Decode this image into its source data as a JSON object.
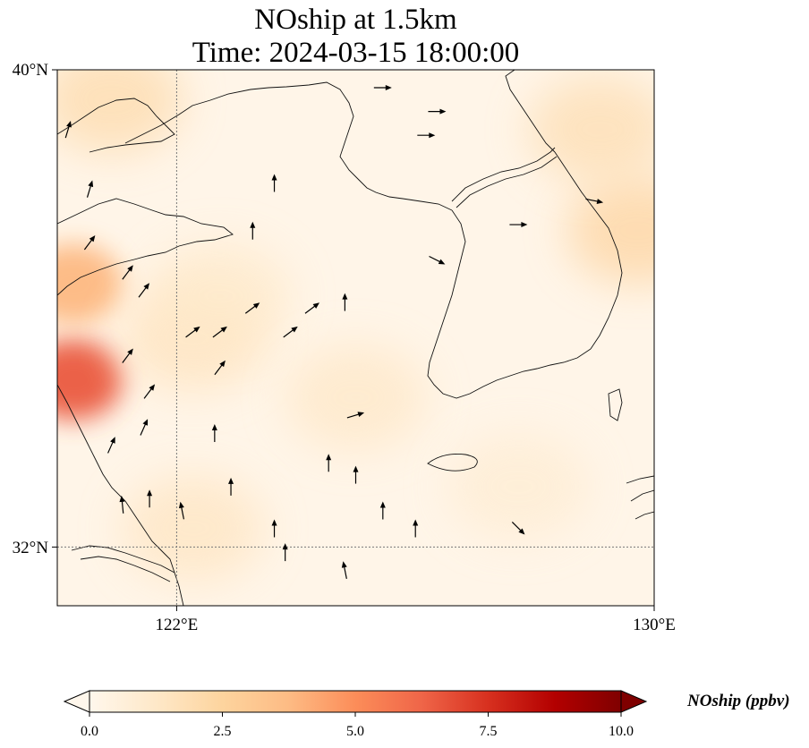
{
  "title": {
    "line1": "NOship at 1.5km",
    "line2": "Time: 2024-03-15 18:00:00"
  },
  "map": {
    "extent_lon": [
      119.0,
      130.0
    ],
    "extent_lat": [
      31.0,
      40.0
    ],
    "lat_ticks": [
      {
        "value": 40,
        "label": "40°N"
      },
      {
        "value": 32,
        "label": "32°N"
      }
    ],
    "lon_ticks": [
      {
        "value": 122,
        "label": "122°E"
      },
      {
        "value": 130,
        "label": "130°E"
      }
    ],
    "gridlines": {
      "lon": 122,
      "lat": 32
    }
  },
  "colorbar": {
    "label": "NOship (ppbv)",
    "min": 0.0,
    "max": 10.0,
    "ticks": [
      "0.0",
      "2.5",
      "5.0",
      "7.5",
      "10.0"
    ],
    "colormap": "OrRd",
    "extend": "both",
    "colors": [
      "#fff7ec",
      "#fee8c8",
      "#fdd49e",
      "#fdbb84",
      "#fc8d59",
      "#ef6548",
      "#d7301f",
      "#b30000",
      "#7f0000"
    ]
  },
  "chart_data": {
    "type": "heatmap",
    "variable": "NOship",
    "units": "ppbv",
    "field_hotspots": [
      {
        "lon": 119.3,
        "lat": 34.8,
        "value": 6.5
      },
      {
        "lon": 119.3,
        "lat": 36.4,
        "value": 3.8
      },
      {
        "lon": 120.0,
        "lat": 39.5,
        "value": 2.2
      },
      {
        "lon": 129.7,
        "lat": 37.3,
        "value": 2.6
      },
      {
        "lon": 129.0,
        "lat": 39.0,
        "value": 2.0
      },
      {
        "lon": 121.5,
        "lat": 35.5,
        "value": 1.6
      },
      {
        "lon": 122.0,
        "lat": 36.2,
        "value": 1.2
      },
      {
        "lon": 124.5,
        "lat": 34.5,
        "value": 1.3
      },
      {
        "lon": 121.5,
        "lat": 32.3,
        "value": 1.5
      },
      {
        "lon": 127.5,
        "lat": 33.0,
        "value": 0.9
      }
    ],
    "wind_vectors": [
      {
        "lon": 119.2,
        "lat": 39.0,
        "u": 0.3,
        "v": 1.0
      },
      {
        "lon": 119.6,
        "lat": 38.0,
        "u": 0.3,
        "v": 1.0
      },
      {
        "lon": 119.6,
        "lat": 37.1,
        "u": 0.6,
        "v": 0.8
      },
      {
        "lon": 120.3,
        "lat": 36.6,
        "u": 0.6,
        "v": 0.8
      },
      {
        "lon": 120.6,
        "lat": 36.3,
        "u": 0.6,
        "v": 0.8
      },
      {
        "lon": 120.3,
        "lat": 35.2,
        "u": 0.6,
        "v": 0.8
      },
      {
        "lon": 120.7,
        "lat": 34.6,
        "u": 0.6,
        "v": 0.8
      },
      {
        "lon": 120.6,
        "lat": 34.0,
        "u": 0.4,
        "v": 0.9
      },
      {
        "lon": 120.0,
        "lat": 33.7,
        "u": 0.4,
        "v": 0.9
      },
      {
        "lon": 121.9,
        "lat": 33.9,
        "u": 0.0,
        "v": 1.0
      },
      {
        "lon": 120.7,
        "lat": 32.8,
        "u": 0.0,
        "v": 1.0
      },
      {
        "lon": 121.3,
        "lat": 32.6,
        "u": -0.2,
        "v": 1.0
      },
      {
        "lon": 120.2,
        "lat": 32.7,
        "u": -0.1,
        "v": 1.0
      },
      {
        "lon": 121.5,
        "lat": 35.6,
        "u": 0.8,
        "v": 0.6
      },
      {
        "lon": 122.0,
        "lat": 35.0,
        "u": 0.6,
        "v": 0.8
      },
      {
        "lon": 122.0,
        "lat": 35.6,
        "u": 0.8,
        "v": 0.6
      },
      {
        "lon": 123.3,
        "lat": 35.6,
        "u": 0.8,
        "v": 0.6
      },
      {
        "lon": 122.6,
        "lat": 36.0,
        "u": 0.8,
        "v": 0.6
      },
      {
        "lon": 123.7,
        "lat": 36.0,
        "u": 0.8,
        "v": 0.6
      },
      {
        "lon": 124.3,
        "lat": 36.1,
        "u": 0.0,
        "v": 1.0
      },
      {
        "lon": 122.6,
        "lat": 37.3,
        "u": 0.0,
        "v": 1.0
      },
      {
        "lon": 123.0,
        "lat": 38.1,
        "u": 0.0,
        "v": 1.0
      },
      {
        "lon": 122.2,
        "lat": 33.0,
        "u": 0.0,
        "v": 1.0
      },
      {
        "lon": 123.2,
        "lat": 31.9,
        "u": 0.0,
        "v": 1.0
      },
      {
        "lon": 123.0,
        "lat": 32.3,
        "u": 0.0,
        "v": 1.0
      },
      {
        "lon": 124.3,
        "lat": 31.6,
        "u": -0.2,
        "v": 1.0
      },
      {
        "lon": 124.0,
        "lat": 33.4,
        "u": 0.0,
        "v": 1.0
      },
      {
        "lon": 124.5,
        "lat": 33.2,
        "u": 0.0,
        "v": 1.0
      },
      {
        "lon": 125.0,
        "lat": 32.6,
        "u": 0.0,
        "v": 1.0
      },
      {
        "lon": 125.6,
        "lat": 32.3,
        "u": 0.0,
        "v": 1.0
      },
      {
        "lon": 125.8,
        "lat": 38.9,
        "u": 1.0,
        "v": 0.0
      },
      {
        "lon": 125.0,
        "lat": 39.7,
        "u": 1.0,
        "v": 0.0
      },
      {
        "lon": 126.0,
        "lat": 39.3,
        "u": 1.0,
        "v": 0.0
      },
      {
        "lon": 128.9,
        "lat": 37.8,
        "u": 1.0,
        "v": -0.2
      },
      {
        "lon": 126.0,
        "lat": 36.8,
        "u": 1.0,
        "v": -0.5
      },
      {
        "lon": 127.5,
        "lat": 37.4,
        "u": 1.0,
        "v": 0.0
      },
      {
        "lon": 124.5,
        "lat": 34.2,
        "u": 1.0,
        "v": 0.3
      },
      {
        "lon": 127.5,
        "lat": 32.3,
        "u": 0.7,
        "v": -0.7
      }
    ]
  }
}
